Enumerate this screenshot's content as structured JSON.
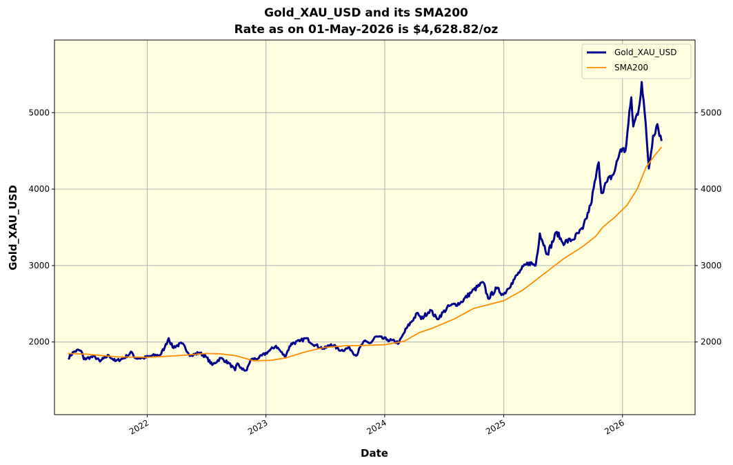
{
  "chart_data": {
    "type": "line",
    "title_line1": "Gold_XAU_USD and its SMA200",
    "title_line2": "Rate as on 01-May-2026 is $4,628.82/oz",
    "xlabel": "Date",
    "ylabel": "Gold_XAU_USD",
    "xlim": [
      "2021-03-22",
      "2026-08-12"
    ],
    "ylim": [
      1050,
      5950
    ],
    "y_ticks": [
      2000,
      3000,
      4000,
      5000
    ],
    "x_ticks": [
      "2022-01-01",
      "2023-01-01",
      "2024-01-01",
      "2025-01-01",
      "2026-01-01"
    ],
    "x_tick_labels": [
      "2022",
      "2023",
      "2024",
      "2025",
      "2026"
    ],
    "grid": true,
    "background_color": "#ffffe0",
    "legend_position": "top-right",
    "series": [
      {
        "name": "Gold_XAU_USD",
        "color": "#00008b",
        "values": [
          [
            "2021-05-03",
            1790
          ],
          [
            "2021-05-20",
            1870
          ],
          [
            "2021-06-05",
            1895
          ],
          [
            "2021-06-14",
            1870
          ],
          [
            "2021-06-20",
            1775
          ],
          [
            "2021-07-10",
            1800
          ],
          [
            "2021-07-25",
            1805
          ],
          [
            "2021-08-09",
            1745
          ],
          [
            "2021-08-20",
            1785
          ],
          [
            "2021-09-05",
            1825
          ],
          [
            "2021-09-25",
            1750
          ],
          [
            "2021-10-20",
            1785
          ],
          [
            "2021-11-15",
            1865
          ],
          [
            "2021-11-25",
            1790
          ],
          [
            "2021-12-20",
            1790
          ],
          [
            "2022-01-15",
            1820
          ],
          [
            "2022-02-10",
            1830
          ],
          [
            "2022-02-24",
            1930
          ],
          [
            "2022-03-08",
            2050
          ],
          [
            "2022-03-20",
            1930
          ],
          [
            "2022-04-18",
            1980
          ],
          [
            "2022-05-15",
            1820
          ],
          [
            "2022-06-10",
            1860
          ],
          [
            "2022-06-30",
            1810
          ],
          [
            "2022-07-20",
            1700
          ],
          [
            "2022-08-15",
            1790
          ],
          [
            "2022-09-10",
            1720
          ],
          [
            "2022-09-28",
            1630
          ],
          [
            "2022-10-05",
            1720
          ],
          [
            "2022-10-20",
            1640
          ],
          [
            "2022-11-03",
            1630
          ],
          [
            "2022-11-15",
            1770
          ],
          [
            "2022-12-10",
            1790
          ],
          [
            "2023-01-10",
            1880
          ],
          [
            "2023-02-01",
            1950
          ],
          [
            "2023-02-28",
            1810
          ],
          [
            "2023-03-20",
            1980
          ],
          [
            "2023-04-15",
            2010
          ],
          [
            "2023-05-04",
            2050
          ],
          [
            "2023-06-01",
            1960
          ],
          [
            "2023-06-29",
            1910
          ],
          [
            "2023-07-20",
            1970
          ],
          [
            "2023-08-20",
            1890
          ],
          [
            "2023-09-15",
            1925
          ],
          [
            "2023-10-05",
            1820
          ],
          [
            "2023-10-27",
            2000
          ],
          [
            "2023-11-20",
            1990
          ],
          [
            "2023-12-04",
            2070
          ],
          [
            "2024-01-10",
            2030
          ],
          [
            "2024-02-14",
            1990
          ],
          [
            "2024-03-08",
            2180
          ],
          [
            "2024-04-12",
            2380
          ],
          [
            "2024-04-22",
            2300
          ],
          [
            "2024-05-20",
            2420
          ],
          [
            "2024-06-10",
            2300
          ],
          [
            "2024-07-17",
            2470
          ],
          [
            "2024-08-20",
            2510
          ],
          [
            "2024-09-25",
            2660
          ],
          [
            "2024-10-30",
            2780
          ],
          [
            "2024-11-14",
            2570
          ],
          [
            "2024-12-10",
            2700
          ],
          [
            "2024-12-31",
            2620
          ],
          [
            "2025-01-25",
            2770
          ],
          [
            "2025-02-24",
            2950
          ],
          [
            "2025-03-20",
            3040
          ],
          [
            "2025-04-09",
            3000
          ],
          [
            "2025-04-22",
            3420
          ],
          [
            "2025-05-15",
            3150
          ],
          [
            "2025-06-13",
            3440
          ],
          [
            "2025-07-01",
            3300
          ],
          [
            "2025-08-01",
            3340
          ],
          [
            "2025-09-01",
            3480
          ],
          [
            "2025-09-25",
            3790
          ],
          [
            "2025-10-20",
            4350
          ],
          [
            "2025-10-28",
            3950
          ],
          [
            "2025-11-15",
            4100
          ],
          [
            "2025-12-05",
            4200
          ],
          [
            "2025-12-26",
            4520
          ],
          [
            "2026-01-10",
            4500
          ],
          [
            "2026-01-28",
            5200
          ],
          [
            "2026-02-03",
            4820
          ],
          [
            "2026-02-20",
            5050
          ],
          [
            "2026-03-01",
            5400
          ],
          [
            "2026-03-10",
            5000
          ],
          [
            "2026-03-23",
            4270
          ],
          [
            "2026-04-05",
            4700
          ],
          [
            "2026-04-18",
            4850
          ],
          [
            "2026-05-01",
            4628.82
          ]
        ]
      },
      {
        "name": "SMA200",
        "color": "#ff8c00",
        "values": [
          [
            "2021-05-03",
            1850
          ],
          [
            "2021-07-01",
            1840
          ],
          [
            "2021-10-01",
            1805
          ],
          [
            "2022-01-01",
            1800
          ],
          [
            "2022-04-01",
            1820
          ],
          [
            "2022-07-01",
            1850
          ],
          [
            "2022-08-15",
            1845
          ],
          [
            "2022-10-01",
            1820
          ],
          [
            "2022-11-25",
            1755
          ],
          [
            "2023-01-15",
            1760
          ],
          [
            "2023-03-01",
            1790
          ],
          [
            "2023-05-01",
            1870
          ],
          [
            "2023-07-01",
            1930
          ],
          [
            "2023-09-01",
            1950
          ],
          [
            "2023-11-01",
            1955
          ],
          [
            "2024-01-01",
            1965
          ],
          [
            "2024-03-01",
            2010
          ],
          [
            "2024-04-15",
            2120
          ],
          [
            "2024-06-01",
            2190
          ],
          [
            "2024-08-01",
            2300
          ],
          [
            "2024-10-01",
            2440
          ],
          [
            "2025-01-01",
            2540
          ],
          [
            "2025-03-01",
            2680
          ],
          [
            "2025-05-01",
            2880
          ],
          [
            "2025-07-01",
            3080
          ],
          [
            "2025-09-01",
            3250
          ],
          [
            "2025-10-10",
            3380
          ],
          [
            "2025-11-01",
            3500
          ],
          [
            "2025-12-10",
            3640
          ],
          [
            "2026-01-15",
            3790
          ],
          [
            "2026-02-15",
            4000
          ],
          [
            "2026-03-15",
            4290
          ],
          [
            "2026-04-10",
            4440
          ],
          [
            "2026-05-01",
            4550
          ]
        ]
      }
    ]
  }
}
